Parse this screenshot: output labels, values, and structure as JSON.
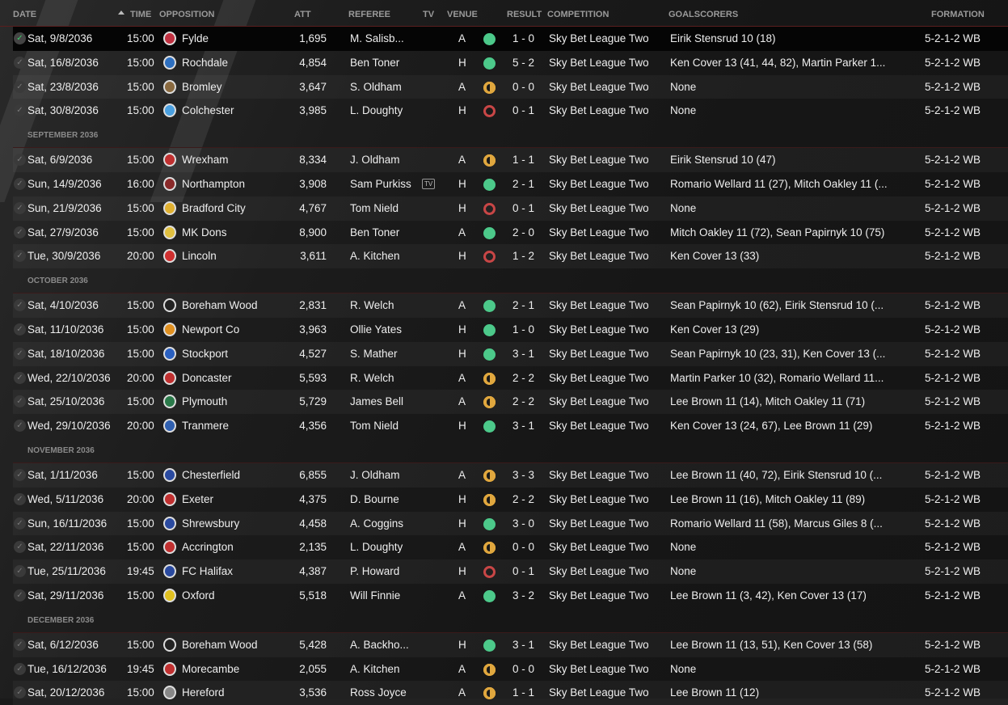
{
  "columns": {
    "date": "DATE",
    "time": "TIME",
    "opposition": "OPPOSITION",
    "att": "ATT",
    "referee": "REFEREE",
    "tv": "TV",
    "venue": "VENUE",
    "result": "RESULT",
    "competition": "COMPETITION",
    "goalscorers": "GOALSCORERS",
    "formation": "FORMATION"
  },
  "colors": {
    "win": "#4cc98a",
    "draw": "#e0a73e",
    "loss": "#c84646",
    "header_line": "#5a1e1e"
  },
  "groups": [
    {
      "month": "",
      "matches": [
        [
          "Sat, 9/8/2036",
          "15:00",
          "Fylde",
          "1,695",
          "M. Salisb...",
          "",
          "A",
          "W",
          "1 - 0",
          "Sky Bet League Two",
          "Eirik Stensrud 10 (18)",
          "5-2-1-2 WB",
          "#c03040"
        ],
        [
          "Sat, 16/8/2036",
          "15:00",
          "Rochdale",
          "4,854",
          "Ben Toner",
          "",
          "H",
          "W",
          "5 - 2",
          "Sky Bet League Two",
          "Ken Cover 13 (41, 44, 82), Martin Parker 1...",
          "5-2-1-2 WB",
          "#2d6fc0"
        ],
        [
          "Sat, 23/8/2036",
          "15:00",
          "Bromley",
          "3,647",
          "S. Oldham",
          "",
          "A",
          "D",
          "0 - 0",
          "Sky Bet League Two",
          "None",
          "5-2-1-2 WB",
          "#8a6a40"
        ],
        [
          "Sat, 30/8/2036",
          "15:00",
          "Colchester",
          "3,985",
          "L. Doughty",
          "",
          "H",
          "L",
          "0 - 1",
          "Sky Bet League Two",
          "None",
          "5-2-1-2 WB",
          "#4aa0e0"
        ]
      ]
    },
    {
      "month": "SEPTEMBER 2036",
      "matches": [
        [
          "Sat, 6/9/2036",
          "15:00",
          "Wrexham",
          "8,334",
          "J. Oldham",
          "",
          "A",
          "D",
          "1 - 1",
          "Sky Bet League Two",
          "Eirik Stensrud 10 (47)",
          "5-2-1-2 WB",
          "#c03030"
        ],
        [
          "Sun, 14/9/2036",
          "16:00",
          "Northampton",
          "3,908",
          "Sam Purkiss",
          "TV",
          "H",
          "W",
          "2 - 1",
          "Sky Bet League Two",
          "Romario Wellard 11 (27), Mitch Oakley 11 (...",
          "5-2-1-2 WB",
          "#8a2a2a"
        ],
        [
          "Sun, 21/9/2036",
          "15:00",
          "Bradford City",
          "4,767",
          "Tom Nield",
          "",
          "H",
          "L",
          "0 - 1",
          "Sky Bet League Two",
          "None",
          "5-2-1-2 WB",
          "#e0b030"
        ],
        [
          "Sat, 27/9/2036",
          "15:00",
          "MK Dons",
          "8,900",
          "Ben Toner",
          "",
          "A",
          "W",
          "2 - 0",
          "Sky Bet League Two",
          "Mitch Oakley 11 (72), Sean Papirnyk 10 (75)",
          "5-2-1-2 WB",
          "#e0c040"
        ],
        [
          "Tue, 30/9/2036",
          "20:00",
          "Lincoln",
          "3,611",
          "A. Kitchen",
          "",
          "H",
          "L",
          "1 - 2",
          "Sky Bet League Two",
          "Ken Cover 13 (33)",
          "5-2-1-2 WB",
          "#d03030"
        ]
      ]
    },
    {
      "month": "OCTOBER 2036",
      "matches": [
        [
          "Sat, 4/10/2036",
          "15:00",
          "Boreham Wood",
          "2,831",
          "R. Welch",
          "",
          "A",
          "W",
          "2 - 1",
          "Sky Bet League Two",
          "Sean Papirnyk 10 (62), Eirik Stensrud 10 (...",
          "5-2-1-2 WB",
          "#222222"
        ],
        [
          "Sat, 11/10/2036",
          "15:00",
          "Newport Co",
          "3,963",
          "Ollie Yates",
          "",
          "H",
          "W",
          "1 - 0",
          "Sky Bet League Two",
          "Ken Cover 13 (29)",
          "5-2-1-2 WB",
          "#e09020"
        ],
        [
          "Sat, 18/10/2036",
          "15:00",
          "Stockport",
          "4,527",
          "S. Mather",
          "",
          "H",
          "W",
          "3 - 1",
          "Sky Bet League Two",
          "Sean Papirnyk 10 (23, 31), Ken Cover 13 (...",
          "5-2-1-2 WB",
          "#2a60c0"
        ],
        [
          "Wed, 22/10/2036",
          "20:00",
          "Doncaster",
          "5,593",
          "R. Welch",
          "",
          "A",
          "D",
          "2 - 2",
          "Sky Bet League Two",
          "Martin Parker 10 (32), Romario Wellard 11...",
          "5-2-1-2 WB",
          "#c03030"
        ],
        [
          "Sat, 25/10/2036",
          "15:00",
          "Plymouth",
          "5,729",
          "James Bell",
          "",
          "A",
          "D",
          "2 - 2",
          "Sky Bet League Two",
          "Lee Brown 11 (14), Mitch Oakley 11 (71)",
          "5-2-1-2 WB",
          "#2a7a4a"
        ],
        [
          "Wed, 29/10/2036",
          "20:00",
          "Tranmere",
          "4,356",
          "Tom Nield",
          "",
          "H",
          "W",
          "3 - 1",
          "Sky Bet League Two",
          "Ken Cover 13 (24, 67), Lee Brown 11 (29)",
          "5-2-1-2 WB",
          "#3060b0"
        ]
      ]
    },
    {
      "month": "NOVEMBER 2036",
      "matches": [
        [
          "Sat, 1/11/2036",
          "15:00",
          "Chesterfield",
          "6,855",
          "J. Oldham",
          "",
          "A",
          "D",
          "3 - 3",
          "Sky Bet League Two",
          "Lee Brown 11 (40, 72), Eirik Stensrud 10 (...",
          "5-2-1-2 WB",
          "#2a4aa0"
        ],
        [
          "Wed, 5/11/2036",
          "20:00",
          "Exeter",
          "4,375",
          "D. Bourne",
          "",
          "H",
          "D",
          "2 - 2",
          "Sky Bet League Two",
          "Lee Brown 11 (16), Mitch Oakley 11 (89)",
          "5-2-1-2 WB",
          "#c03030"
        ],
        [
          "Sun, 16/11/2036",
          "15:00",
          "Shrewsbury",
          "4,458",
          "A. Coggins",
          "",
          "H",
          "W",
          "3 - 0",
          "Sky Bet League Two",
          "Romario Wellard 11 (58), Marcus Giles 8 (...",
          "5-2-1-2 WB",
          "#2a4aa0"
        ],
        [
          "Sat, 22/11/2036",
          "15:00",
          "Accrington",
          "2,135",
          "L. Doughty",
          "",
          "A",
          "D",
          "0 - 0",
          "Sky Bet League Two",
          "None",
          "5-2-1-2 WB",
          "#c03030"
        ],
        [
          "Tue, 25/11/2036",
          "19:45",
          "FC Halifax",
          "4,387",
          "P. Howard",
          "",
          "H",
          "L",
          "0 - 1",
          "Sky Bet League Two",
          "None",
          "5-2-1-2 WB",
          "#2a4aa0"
        ],
        [
          "Sat, 29/11/2036",
          "15:00",
          "Oxford",
          "5,518",
          "Will Finnie",
          "",
          "A",
          "W",
          "3 - 2",
          "Sky Bet League Two",
          "Lee Brown 11 (3, 42), Ken Cover 13 (17)",
          "5-2-1-2 WB",
          "#e0c020"
        ]
      ]
    },
    {
      "month": "DECEMBER 2036",
      "matches": [
        [
          "Sat, 6/12/2036",
          "15:00",
          "Boreham Wood",
          "5,428",
          "A. Backho...",
          "",
          "H",
          "W",
          "3 - 1",
          "Sky Bet League Two",
          "Lee Brown 11 (13, 51), Ken Cover 13 (58)",
          "5-2-1-2 WB",
          "#222222"
        ],
        [
          "Tue, 16/12/2036",
          "19:45",
          "Morecambe",
          "2,055",
          "A. Kitchen",
          "",
          "A",
          "D",
          "0 - 0",
          "Sky Bet League Two",
          "None",
          "5-2-1-2 WB",
          "#c03030"
        ],
        [
          "Sat, 20/12/2036",
          "15:00",
          "Hereford",
          "3,536",
          "Ross Joyce",
          "",
          "A",
          "D",
          "1 - 1",
          "Sky Bet League Two",
          "Lee Brown 11 (12)",
          "5-2-1-2 WB",
          "#888888"
        ]
      ]
    }
  ]
}
